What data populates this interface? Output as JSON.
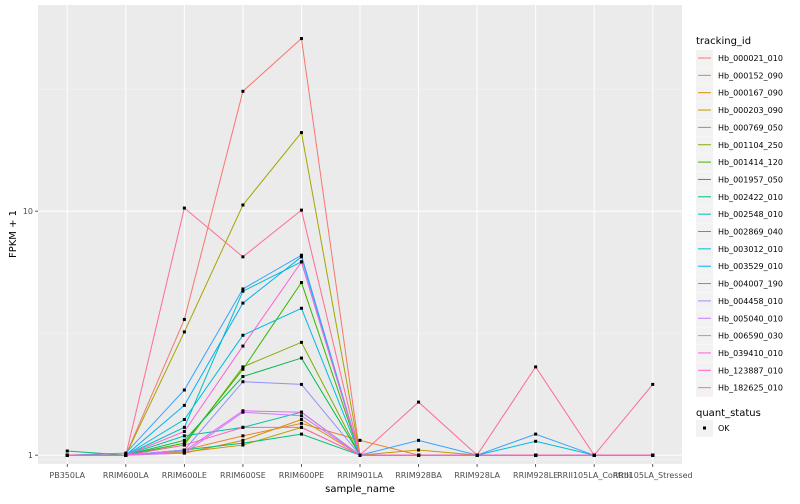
{
  "chart_data": {
    "type": "line",
    "xlabel": "sample_name",
    "ylabel": "FPKM + 1",
    "y_scale": "log10",
    "ylim": [
      0.92,
      70
    ],
    "y_ticks": [
      1,
      10
    ],
    "y_tick_labels": [
      "1",
      "10"
    ],
    "categories": [
      "PB350LA",
      "RRIM600LA",
      "RRIM600LE",
      "RRIM600SE",
      "RRIM600PE",
      "RRIM901LA",
      "RRIM928BA",
      "RRIM928LA",
      "RRIM928LE",
      "RRII105LA_Control",
      "RRII105LA_Stressed"
    ],
    "category_labels": [
      "PB350LA",
      "RRIM600LA",
      "RRIM600LE",
      "RRIM600SE",
      "RRIM600PE",
      "RRIM901LA",
      "RRIM928BA",
      "RRIM928LA",
      "RRIM928LE",
      "RRII105LA_Control",
      "RRII105LA_Stressed"
    ],
    "legend": {
      "title": "tracking_id",
      "shape_title": "quant_status",
      "shape_entries": [
        "OK"
      ]
    },
    "series": [
      {
        "name": "Hb_000021_010",
        "color": "#F8766D",
        "values": [
          1.0,
          1.0,
          3.6,
          31.0,
          51.0,
          1.0,
          1.0,
          1.0,
          1.0,
          1.0,
          1.0
        ]
      },
      {
        "name": "Hb_000152_090",
        "color": "#EA8331",
        "values": [
          1.0,
          1.0,
          1.05,
          1.2,
          1.35,
          1.15,
          1.0,
          1.0,
          1.0,
          1.0,
          1.0
        ]
      },
      {
        "name": "Hb_000167_090",
        "color": "#D89000",
        "values": [
          1.0,
          1.0,
          1.02,
          1.15,
          1.4,
          1.0,
          1.0,
          1.0,
          1.0,
          1.0,
          1.0
        ]
      },
      {
        "name": "Hb_000203_090",
        "color": "#C09B00",
        "values": [
          1.0,
          1.0,
          1.03,
          1.1,
          1.3,
          1.0,
          1.05,
          1.0,
          1.0,
          1.0,
          1.0
        ]
      },
      {
        "name": "Hb_000769_050",
        "color": "#A3A500",
        "values": [
          1.0,
          1.0,
          3.2,
          10.6,
          21.0,
          1.0,
          1.0,
          1.0,
          1.0,
          1.0,
          1.0
        ]
      },
      {
        "name": "Hb_001104_250",
        "color": "#7CAE00",
        "values": [
          1.0,
          1.0,
          1.1,
          2.3,
          2.9,
          1.0,
          1.0,
          1.0,
          1.0,
          1.0,
          1.0
        ]
      },
      {
        "name": "Hb_001414_120",
        "color": "#39B600",
        "values": [
          1.0,
          1.0,
          1.12,
          2.25,
          5.1,
          1.0,
          1.0,
          1.0,
          1.0,
          1.0,
          1.0
        ]
      },
      {
        "name": "Hb_001957_050",
        "color": "#00BB4E",
        "values": [
          1.0,
          1.0,
          1.15,
          2.1,
          2.5,
          1.0,
          1.0,
          1.0,
          1.0,
          1.0,
          1.0
        ]
      },
      {
        "name": "Hb_002422_010",
        "color": "#00BF7D",
        "values": [
          1.04,
          1.0,
          1.05,
          1.12,
          1.22,
          1.0,
          1.0,
          1.0,
          1.0,
          1.0,
          1.0
        ]
      },
      {
        "name": "Hb_002548_010",
        "color": "#00C1A3",
        "values": [
          1.0,
          1.0,
          1.2,
          1.3,
          1.5,
          1.0,
          1.0,
          1.0,
          1.0,
          1.0,
          1.0
        ]
      },
      {
        "name": "Hb_002869_040",
        "color": "#00BFC4",
        "values": [
          1.0,
          1.0,
          1.3,
          4.7,
          6.2,
          1.0,
          1.0,
          1.0,
          1.0,
          1.0,
          1.0
        ]
      },
      {
        "name": "Hb_003012_010",
        "color": "#00BAE0",
        "values": [
          1.0,
          1.0,
          1.4,
          3.1,
          4.0,
          1.0,
          1.0,
          1.0,
          1.14,
          1.0,
          1.0
        ]
      },
      {
        "name": "Hb_003529_010",
        "color": "#00B0F6",
        "values": [
          1.0,
          1.0,
          1.6,
          4.2,
          6.5,
          1.0,
          1.0,
          1.0,
          1.0,
          1.0,
          1.0
        ]
      },
      {
        "name": "Hb_004007_190",
        "color": "#35A2FF",
        "values": [
          1.0,
          1.02,
          1.85,
          4.8,
          6.6,
          1.0,
          1.15,
          1.0,
          1.22,
          1.0,
          1.0
        ]
      },
      {
        "name": "Hb_004458_010",
        "color": "#9590FF",
        "values": [
          1.0,
          1.0,
          1.05,
          2.0,
          1.95,
          1.0,
          1.0,
          1.0,
          1.0,
          1.0,
          1.0
        ]
      },
      {
        "name": "Hb_005040_010",
        "color": "#C77CFF",
        "values": [
          1.0,
          1.0,
          1.02,
          1.5,
          1.45,
          1.0,
          1.0,
          1.0,
          1.0,
          1.0,
          1.0
        ]
      },
      {
        "name": "Hb_006590_030",
        "color": "#E76BF3",
        "values": [
          1.0,
          1.0,
          1.04,
          1.52,
          1.5,
          1.0,
          1.0,
          1.0,
          1.0,
          1.0,
          1.0
        ]
      },
      {
        "name": "Hb_039410_010",
        "color": "#FA62DB",
        "values": [
          1.0,
          1.0,
          1.25,
          2.8,
          6.2,
          1.0,
          1.0,
          1.0,
          1.0,
          1.0,
          1.0
        ]
      },
      {
        "name": "Hb_123887_010",
        "color": "#FF62BC",
        "values": [
          1.0,
          1.0,
          1.1,
          1.3,
          1.3,
          1.0,
          1.0,
          1.0,
          1.0,
          1.0,
          1.0
        ]
      },
      {
        "name": "Hb_182625_010",
        "color": "#FF6C91",
        "values": [
          1.0,
          1.0,
          10.3,
          6.5,
          10.1,
          1.0,
          1.65,
          1.0,
          2.3,
          1.0,
          1.95
        ]
      }
    ]
  }
}
